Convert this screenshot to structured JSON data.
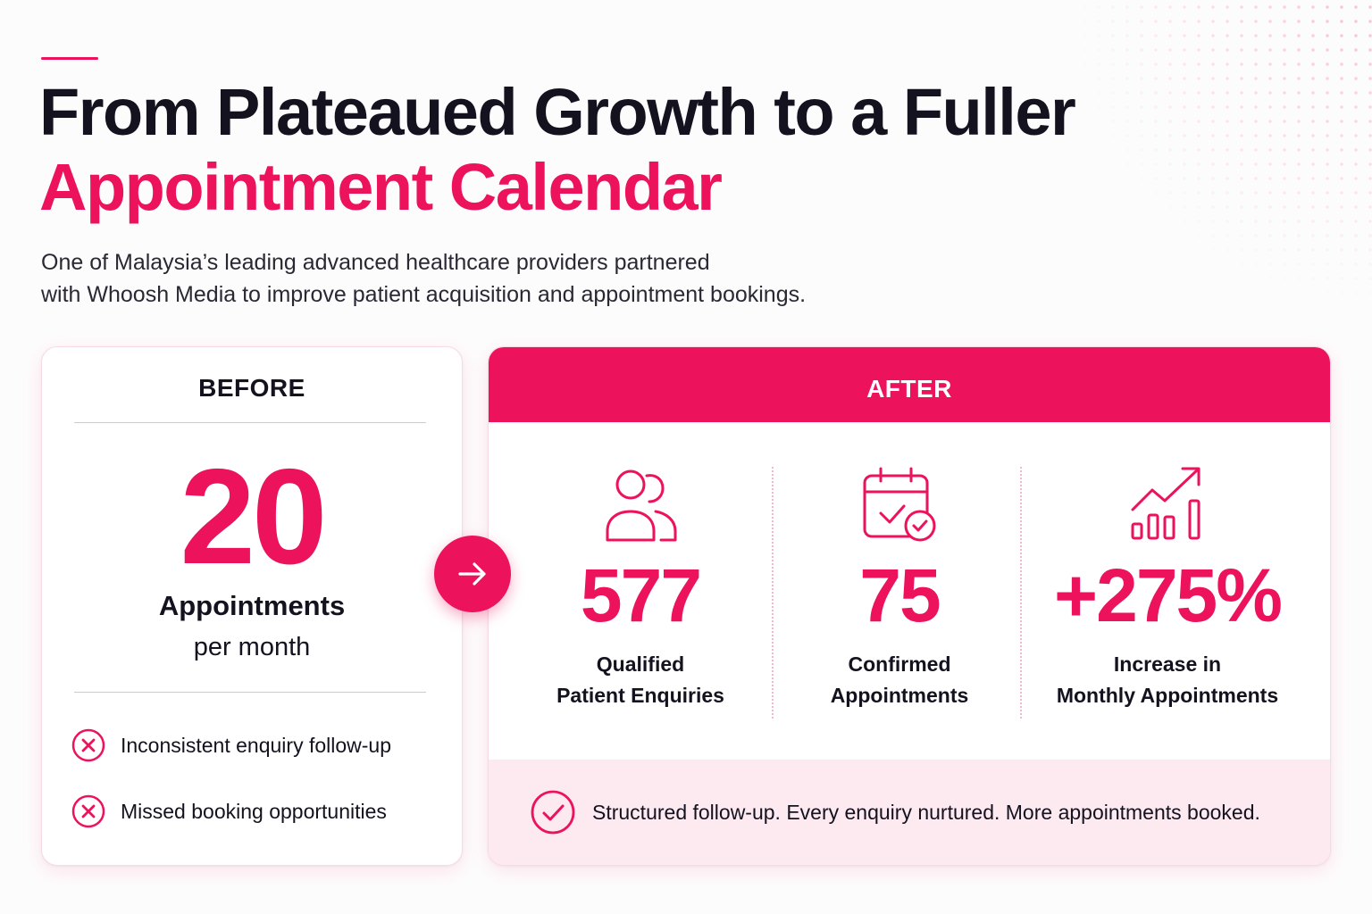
{
  "title": {
    "line1": "From Plateaued Growth to a Fuller",
    "line2": "Appointment Calendar"
  },
  "subtitle": {
    "line1": "One of Malaysia’s leading advanced healthcare providers partnered",
    "line2": "with Whoosh Media to improve patient acquisition and appointment bookings."
  },
  "before": {
    "label": "BEFORE",
    "value": "20",
    "value_label": "Appointments",
    "value_sub": "per month",
    "issues": [
      {
        "icon": "x-circle-icon",
        "text": "Inconsistent enquiry follow-up"
      },
      {
        "icon": "x-circle-icon",
        "text": "Missed booking opportunities"
      }
    ]
  },
  "after": {
    "label": "AFTER",
    "metrics": [
      {
        "icon": "users-icon",
        "value": "577",
        "label_line1": "Qualified",
        "label_line2": "Patient Enquiries"
      },
      {
        "icon": "calendar-check-icon",
        "value": "75",
        "label_line1": "Confirmed",
        "label_line2": "Appointments"
      },
      {
        "icon": "growth-chart-icon",
        "value": "+275%",
        "label_line1": "Increase in",
        "label_line2": "Monthly Appointments"
      }
    ],
    "footer": {
      "icon": "check-circle-icon",
      "text": "Structured follow-up. Every enquiry nurtured. More appointments booked."
    }
  },
  "colors": {
    "accent": "#ec125c",
    "text": "#14121f",
    "footer_bg": "#fde9f0"
  }
}
